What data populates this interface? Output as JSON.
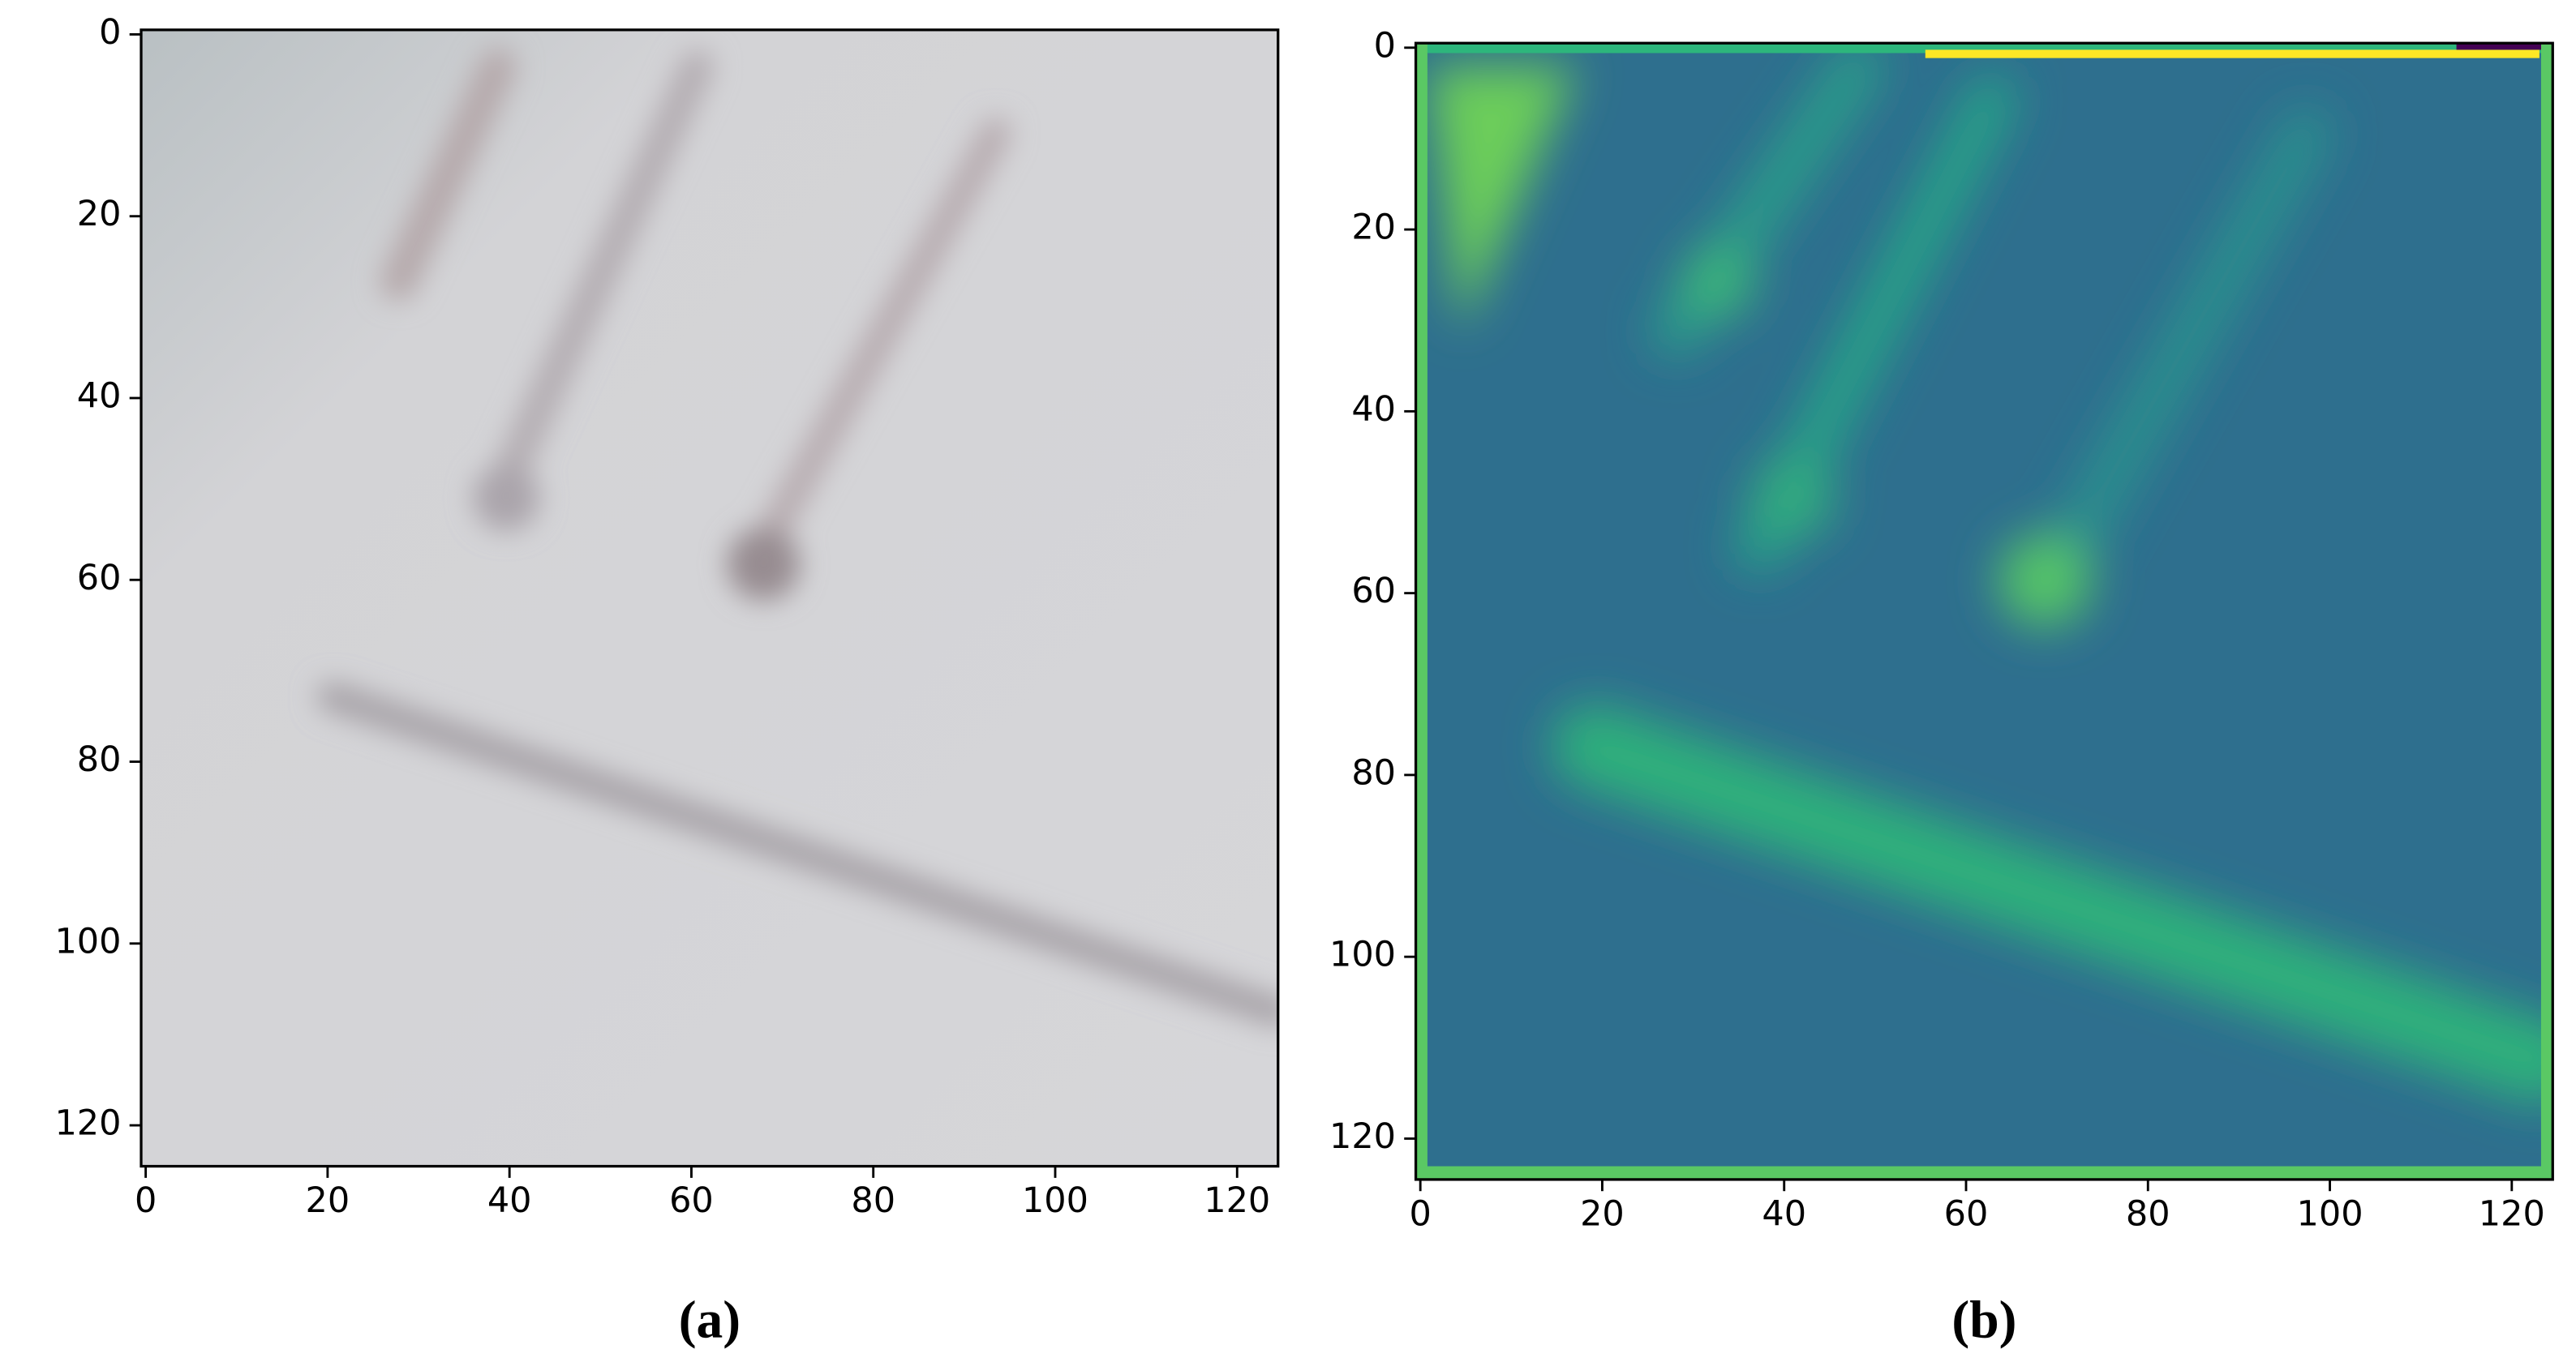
{
  "chart_data": [
    {
      "type": "image",
      "caption": "(a)",
      "xlim": [
        -0.5,
        124.5
      ],
      "ylim": [
        124.5,
        -0.5
      ],
      "xticks": [
        0,
        20,
        40,
        60,
        80,
        100,
        120
      ],
      "yticks": [
        0,
        20,
        40,
        60,
        80,
        100,
        120
      ]
    },
    {
      "type": "image",
      "caption": "(b)",
      "xlim": [
        -0.5,
        124.5
      ],
      "ylim": [
        124.5,
        -0.5
      ],
      "xticks": [
        0,
        20,
        40,
        60,
        80,
        100,
        120
      ],
      "yticks": [
        0,
        20,
        40,
        60,
        80,
        100,
        120
      ]
    }
  ]
}
